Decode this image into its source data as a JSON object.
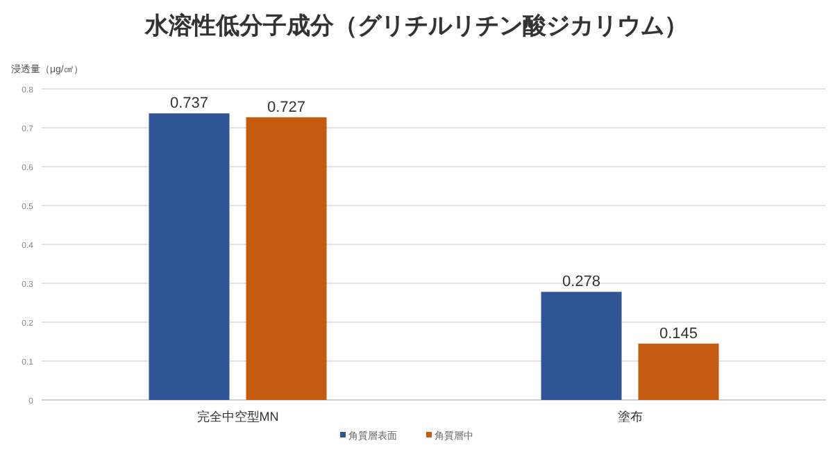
{
  "chart_data": {
    "type": "bar",
    "title": "水溶性低分子成分（グリチルリチン酸ジカリウム）",
    "ylabel": "浸透量（μg/㎠）",
    "categories": [
      "完全中空型MN",
      "塗布"
    ],
    "series": [
      {
        "name": "角質層表面",
        "color": "#2f5597",
        "values": [
          0.737,
          0.278
        ]
      },
      {
        "name": "角質層中",
        "color": "#c55a11",
        "values": [
          0.727,
          0.145
        ]
      }
    ],
    "ylim": [
      0,
      0.8
    ],
    "yticks": [
      0,
      0.1,
      0.2,
      0.3,
      0.4,
      0.5,
      0.6,
      0.7,
      0.8
    ],
    "grid": "y",
    "data_labels": true,
    "legend": "bottom"
  }
}
